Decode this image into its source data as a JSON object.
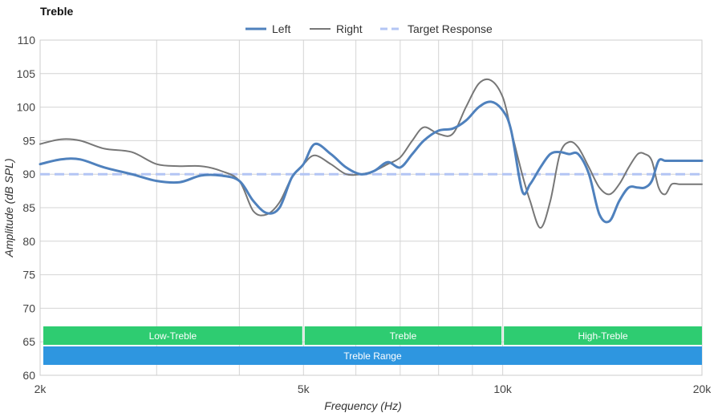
{
  "chart_data": {
    "type": "line",
    "title": "Treble",
    "xlabel": "Frequency (Hz)",
    "ylabel": "Amplitude (dB SPL)",
    "xscale": "log",
    "xlim": [
      2000,
      20000
    ],
    "ylim": [
      60,
      110
    ],
    "x_ticks": [
      {
        "value": 2000,
        "label": "2k"
      },
      {
        "value": 5000,
        "label": "5k"
      },
      {
        "value": 10000,
        "label": "10k"
      },
      {
        "value": 20000,
        "label": "20k"
      }
    ],
    "x_minor_gridlines": [
      3000,
      4000,
      6000,
      7000,
      8000,
      9000
    ],
    "y_ticks": [
      60,
      65,
      70,
      75,
      80,
      85,
      90,
      95,
      100,
      105,
      110
    ],
    "grid": true,
    "legend_position": "top-center",
    "series": [
      {
        "name": "Left",
        "color": "#4f81bd",
        "style": "solid-thick",
        "x": [
          2000,
          2150,
          2300,
          2500,
          2750,
          3000,
          3250,
          3500,
          3750,
          4000,
          4200,
          4400,
          4600,
          4800,
          5000,
          5200,
          5500,
          5800,
          6100,
          6400,
          6700,
          7000,
          7300,
          7600,
          8000,
          8400,
          8800,
          9200,
          9600,
          10000,
          10300,
          10700,
          11000,
          11400,
          11800,
          12200,
          12600,
          13000,
          13500,
          14000,
          14500,
          15000,
          15500,
          16000,
          16400,
          16800,
          17200,
          17600,
          18000,
          18500,
          19000,
          19500,
          20000
        ],
        "y": [
          91.5,
          92.2,
          92.2,
          91.0,
          90.0,
          89.0,
          88.8,
          89.8,
          89.8,
          89.0,
          86.0,
          84.2,
          85.0,
          89.5,
          91.5,
          94.5,
          93.0,
          91.0,
          90.0,
          90.5,
          91.8,
          91.0,
          93.0,
          95.0,
          96.5,
          96.8,
          98.0,
          100.0,
          100.8,
          99.5,
          96.5,
          87.5,
          88.5,
          91.0,
          93.0,
          93.3,
          93.0,
          93.0,
          90.0,
          84.0,
          83.0,
          86.0,
          88.0,
          88.0,
          88.0,
          89.0,
          92.0,
          92.0,
          92.0,
          92.0,
          92.0,
          92.0,
          92.0
        ]
      },
      {
        "name": "Right",
        "color": "#777777",
        "style": "solid-thin",
        "x": [
          2000,
          2150,
          2300,
          2500,
          2750,
          3000,
          3250,
          3500,
          3750,
          4000,
          4200,
          4400,
          4600,
          4800,
          5000,
          5200,
          5500,
          5800,
          6100,
          6400,
          6700,
          7000,
          7300,
          7600,
          8000,
          8400,
          8800,
          9200,
          9600,
          10000,
          10300,
          10700,
          11000,
          11400,
          11800,
          12200,
          12600,
          13000,
          13500,
          14000,
          14500,
          15000,
          15500,
          16000,
          16400,
          16800,
          17200,
          17600,
          18000,
          18500,
          19000,
          19500,
          20000
        ],
        "y": [
          94.5,
          95.2,
          95.0,
          93.8,
          93.3,
          91.5,
          91.2,
          91.2,
          90.5,
          89.0,
          84.5,
          84.0,
          85.8,
          89.5,
          91.5,
          92.8,
          91.5,
          90.0,
          90.0,
          90.5,
          91.5,
          92.5,
          95.0,
          97.0,
          96.0,
          96.0,
          100.0,
          103.5,
          104.0,
          101.5,
          96.5,
          90.0,
          86.0,
          82.0,
          86.0,
          93.0,
          94.8,
          94.0,
          91.0,
          88.0,
          87.0,
          88.5,
          91.0,
          93.0,
          93.0,
          92.0,
          88.0,
          87.0,
          88.5,
          88.5,
          88.5,
          88.5,
          88.5
        ]
      },
      {
        "name": "Target Response",
        "color": "#b3c5f4",
        "style": "dashed",
        "x": [
          2000,
          20000
        ],
        "y": [
          90,
          90
        ]
      }
    ],
    "ranges": [
      {
        "label": "Low-Treble",
        "x_start": 2000,
        "x_end": 5000,
        "row": 1,
        "color": "#2ecc71"
      },
      {
        "label": "Treble",
        "x_start": 5000,
        "x_end": 10000,
        "row": 1,
        "color": "#2ecc71"
      },
      {
        "label": "High-Treble",
        "x_start": 10000,
        "x_end": 20000,
        "row": 1,
        "color": "#2ecc71"
      },
      {
        "label": "Treble Range",
        "x_start": 2000,
        "x_end": 20000,
        "row": 2,
        "color": "#2e96e0"
      }
    ]
  }
}
